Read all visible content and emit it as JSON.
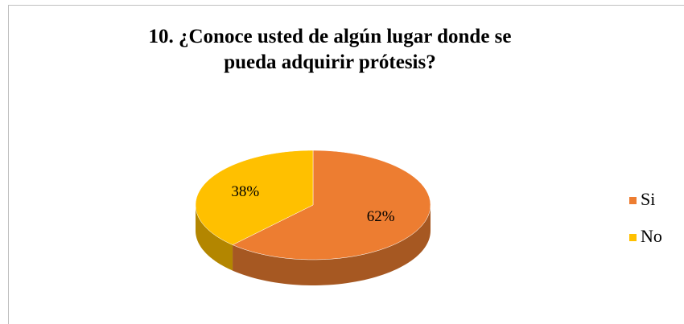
{
  "chart_data": {
    "type": "pie",
    "title": "10. ¿Conoce usted de algún lugar donde se pueda adquirir prótesis?",
    "categories": [
      "Si",
      "No"
    ],
    "values": [
      62,
      38
    ],
    "value_labels": [
      "62%",
      "38%"
    ],
    "colors": [
      "#ed7d31",
      "#ffc000"
    ],
    "legend": "right"
  }
}
